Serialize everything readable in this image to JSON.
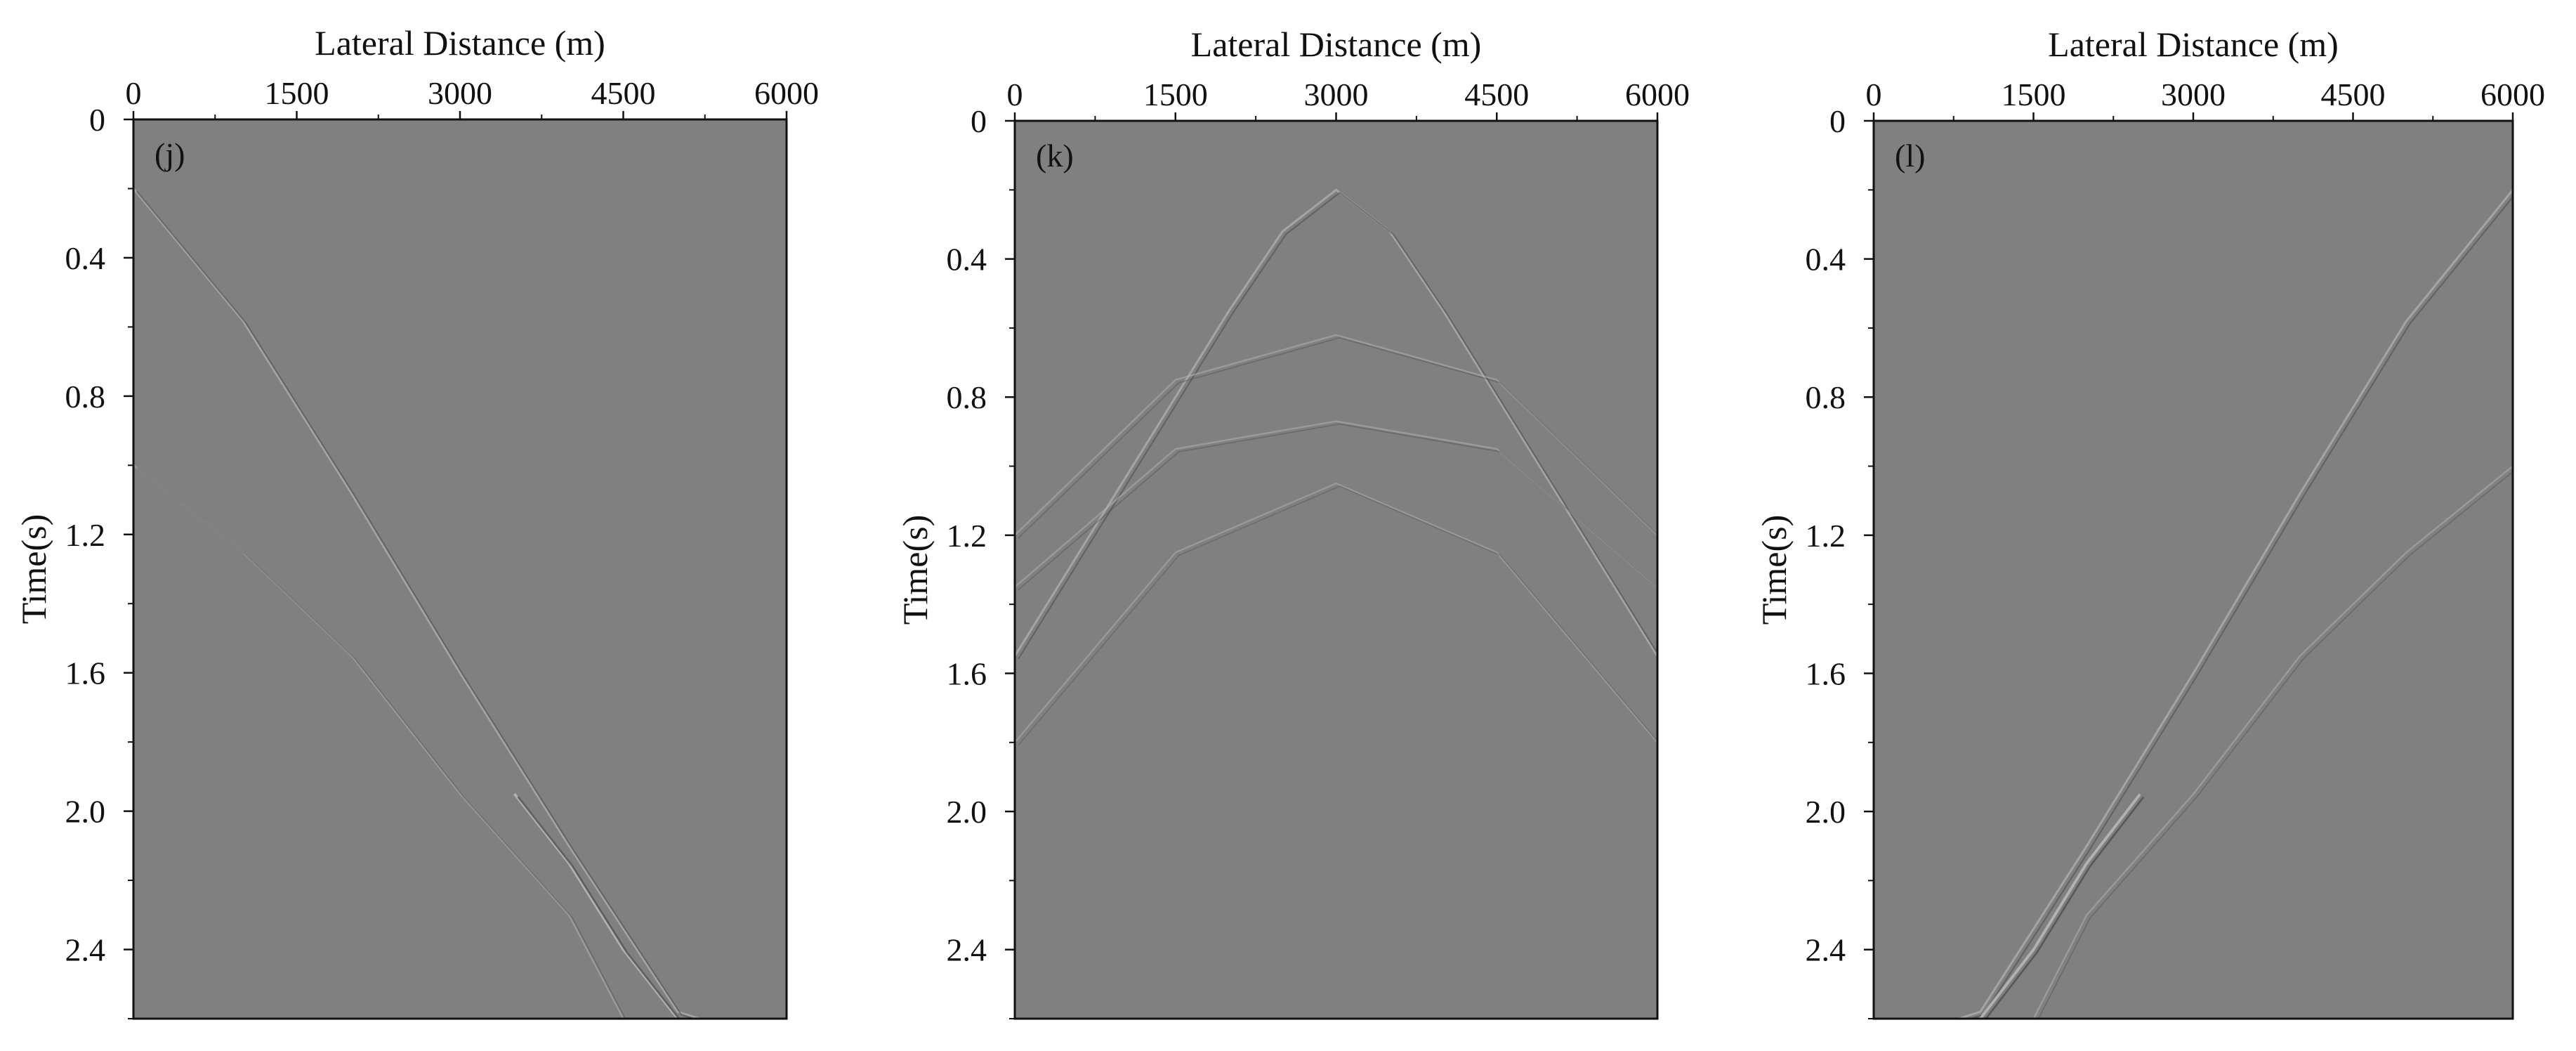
{
  "background_color": "#808080",
  "event_light_color": "#b4b4b4",
  "event_dark_color": "#4a4a4a",
  "chart_data": [
    {
      "type": "heatmap",
      "panel_label": "(j)",
      "title": "",
      "xlabel": "Lateral Distance (m)",
      "ylabel": "Time(s)",
      "xlim": [
        0,
        6000
      ],
      "ylim": [
        0,
        2.6
      ],
      "xticks": [
        "0",
        "1500",
        "3000",
        "4500",
        "6000"
      ],
      "yticks": [
        "0",
        "0.4",
        "0.8",
        "1.2",
        "1.6",
        "2.0",
        "2.4"
      ],
      "source_x": 0,
      "apex_time": 0.2,
      "events": [
        {
          "x": [
            0,
            1000,
            2000,
            3000,
            4000,
            5000,
            5200
          ],
          "t": [
            0.2,
            0.58,
            1.08,
            1.6,
            2.1,
            2.58,
            2.6
          ],
          "strength": 0.35
        },
        {
          "x": [
            0,
            1000,
            2000,
            3000,
            4000,
            4500
          ],
          "t": [
            1.0,
            1.25,
            1.55,
            1.95,
            2.3,
            2.6
          ],
          "strength": 0.15
        },
        {
          "x": [
            3500,
            4000,
            4500,
            5000
          ],
          "t": [
            1.95,
            2.15,
            2.4,
            2.6
          ],
          "strength": 0.6
        }
      ],
      "grid": false
    },
    {
      "type": "heatmap",
      "panel_label": "(k)",
      "title": "",
      "xlabel": "Lateral Distance (m)",
      "ylabel": "Time(s)",
      "xlim": [
        0,
        6000
      ],
      "ylim": [
        0,
        2.6
      ],
      "xticks": [
        "0",
        "1500",
        "3000",
        "4500",
        "6000"
      ],
      "yticks": [
        "0",
        "0.4",
        "0.8",
        "1.2",
        "1.6",
        "2.0",
        "2.4"
      ],
      "source_x": 3000,
      "apex_time": 0.2,
      "events": [
        {
          "x": [
            0,
            1000,
            2000,
            2500,
            3000,
            3500,
            4000,
            5000,
            6000
          ],
          "t": [
            1.55,
            1.05,
            0.55,
            0.32,
            0.2,
            0.32,
            0.55,
            1.05,
            1.55
          ],
          "strength": 0.35
        },
        {
          "x": [
            0,
            1500,
            3000,
            4500,
            6000
          ],
          "t": [
            1.2,
            0.75,
            0.62,
            0.75,
            1.2
          ],
          "strength": 0.15
        },
        {
          "x": [
            0,
            1500,
            3000,
            4500,
            6000
          ],
          "t": [
            1.35,
            0.95,
            0.87,
            0.95,
            1.35
          ],
          "strength": 0.15
        },
        {
          "x": [
            0,
            1500,
            3000,
            4500,
            6000
          ],
          "t": [
            1.8,
            1.25,
            1.05,
            1.25,
            1.8
          ],
          "strength": 0.12
        }
      ],
      "grid": false
    },
    {
      "type": "heatmap",
      "panel_label": "(l)",
      "title": "",
      "xlabel": "Lateral Distance (m)",
      "ylabel": "Time(s)",
      "xlim": [
        0,
        6000
      ],
      "ylim": [
        0,
        2.6
      ],
      "xticks": [
        "0",
        "1500",
        "3000",
        "4500",
        "6000"
      ],
      "yticks": [
        "0",
        "0.4",
        "0.8",
        "1.2",
        "1.6",
        "2.0",
        "2.4"
      ],
      "source_x": 6000,
      "apex_time": 0.2,
      "events": [
        {
          "x": [
            6000,
            5000,
            4000,
            3000,
            2000,
            1000,
            800
          ],
          "t": [
            0.2,
            0.58,
            1.08,
            1.6,
            2.1,
            2.58,
            2.6
          ],
          "strength": 0.35
        },
        {
          "x": [
            6000,
            5000,
            4000,
            3000,
            2000,
            1500
          ],
          "t": [
            1.0,
            1.25,
            1.55,
            1.95,
            2.3,
            2.6
          ],
          "strength": 0.15
        },
        {
          "x": [
            2500,
            2000,
            1500,
            1000
          ],
          "t": [
            1.95,
            2.15,
            2.4,
            2.6
          ],
          "strength": 0.6
        }
      ],
      "grid": false
    }
  ]
}
